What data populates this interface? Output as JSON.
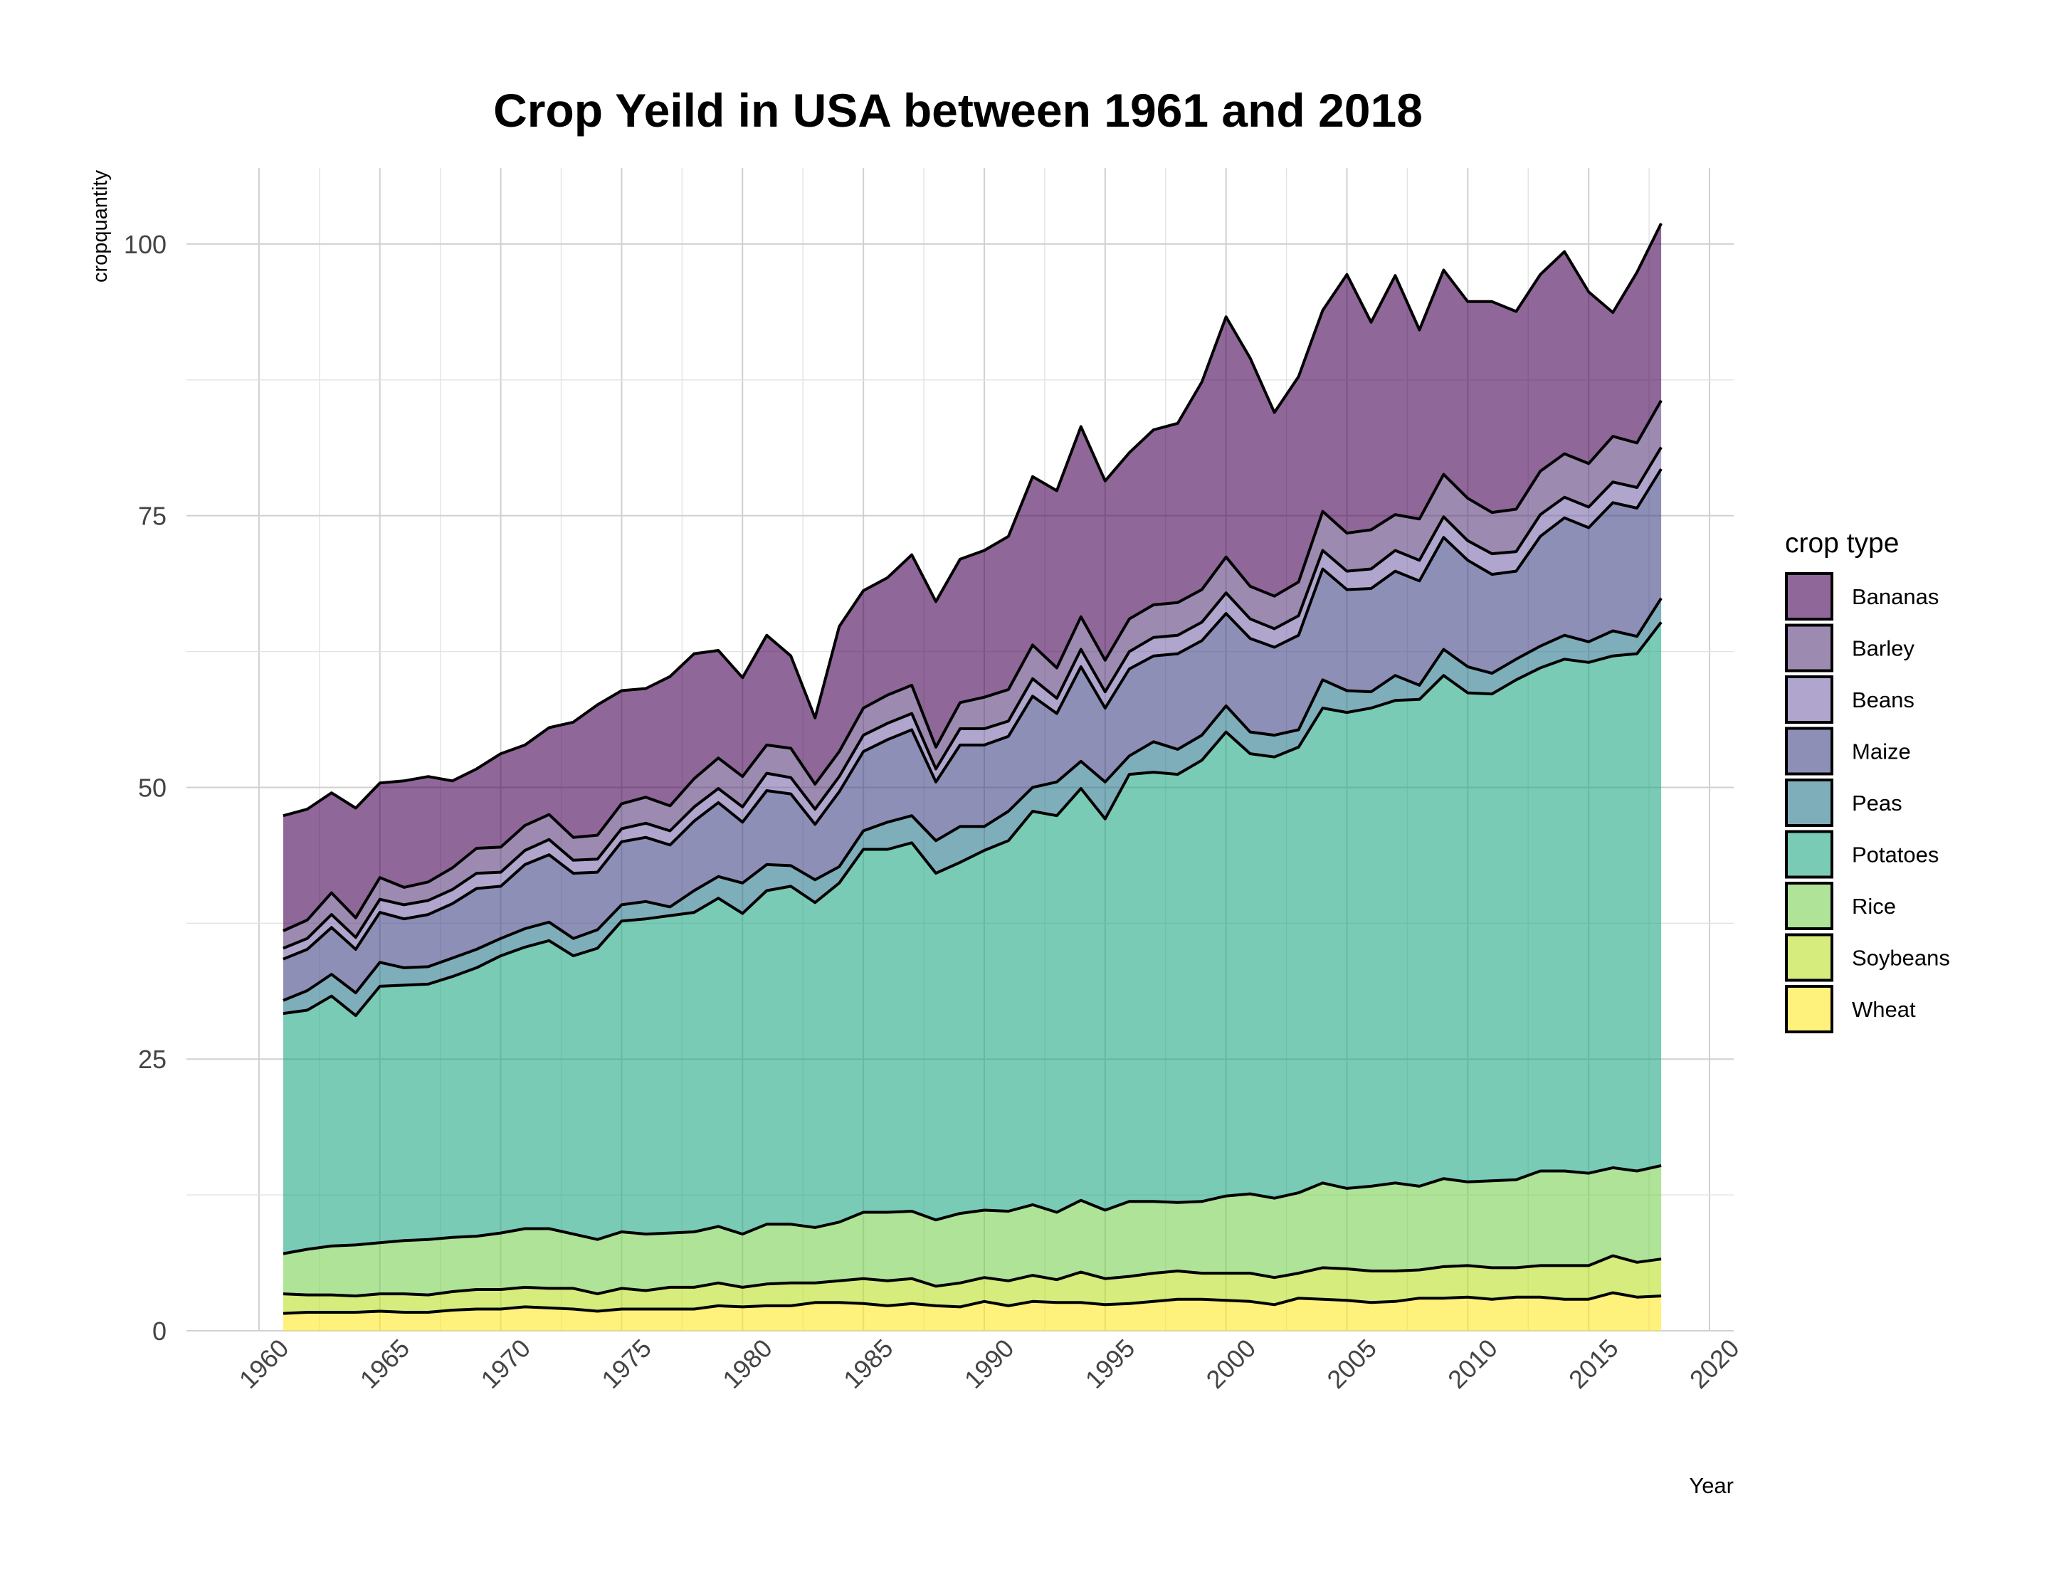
{
  "chart_data": {
    "type": "area",
    "stacked": true,
    "title": "Crop Yeild in USA between 1961 and 2018",
    "xlabel": "Year",
    "ylabel": "cropquantity",
    "xlim": [
      1957,
      2021
    ],
    "ylim": [
      0,
      107
    ],
    "x_ticks": [
      1960,
      1965,
      1970,
      1975,
      1980,
      1985,
      1990,
      1995,
      2000,
      2005,
      2010,
      2015,
      2020
    ],
    "y_ticks": [
      0,
      25,
      50,
      75,
      100
    ],
    "grid": true,
    "legend_title": "crop type",
    "legend_position": "right",
    "x": [
      1961,
      1962,
      1963,
      1964,
      1965,
      1966,
      1967,
      1968,
      1969,
      1970,
      1971,
      1972,
      1973,
      1974,
      1975,
      1976,
      1977,
      1978,
      1979,
      1980,
      1981,
      1982,
      1983,
      1984,
      1985,
      1986,
      1987,
      1988,
      1989,
      1990,
      1991,
      1992,
      1993,
      1994,
      1995,
      1996,
      1997,
      1998,
      1999,
      2000,
      2001,
      2002,
      2003,
      2004,
      2005,
      2006,
      2007,
      2008,
      2009,
      2010,
      2011,
      2012,
      2013,
      2014,
      2015,
      2016,
      2017,
      2018
    ],
    "series": [
      {
        "name": "Wheat",
        "color": "#FDE725",
        "values": [
          1.6,
          1.7,
          1.7,
          1.7,
          1.8,
          1.7,
          1.7,
          1.9,
          2.0,
          2.0,
          2.2,
          2.1,
          2.0,
          1.8,
          2.0,
          2.0,
          2.0,
          2.0,
          2.3,
          2.2,
          2.3,
          2.3,
          2.6,
          2.6,
          2.5,
          2.3,
          2.5,
          2.3,
          2.2,
          2.7,
          2.3,
          2.7,
          2.6,
          2.6,
          2.4,
          2.5,
          2.7,
          2.9,
          2.9,
          2.8,
          2.7,
          2.4,
          3.0,
          2.9,
          2.8,
          2.6,
          2.7,
          3.0,
          3.0,
          3.1,
          2.9,
          3.1,
          3.1,
          2.9,
          2.9,
          3.5,
          3.1,
          3.2
        ]
      },
      {
        "name": "Soybeans",
        "color": "#BBDF27",
        "values": [
          1.8,
          1.6,
          1.6,
          1.5,
          1.6,
          1.7,
          1.6,
          1.7,
          1.8,
          1.8,
          1.8,
          1.8,
          1.9,
          1.6,
          1.9,
          1.7,
          2.0,
          2.0,
          2.1,
          1.8,
          2.0,
          2.1,
          1.8,
          2.0,
          2.3,
          2.3,
          2.3,
          1.8,
          2.2,
          2.2,
          2.3,
          2.4,
          2.1,
          2.8,
          2.4,
          2.5,
          2.6,
          2.6,
          2.4,
          2.5,
          2.6,
          2.5,
          2.3,
          2.9,
          2.9,
          2.9,
          2.8,
          2.6,
          2.9,
          2.9,
          2.9,
          2.7,
          2.9,
          3.1,
          3.1,
          3.4,
          3.2,
          3.4
        ]
      },
      {
        "name": "Rice",
        "color": "#7AD151",
        "values": [
          3.7,
          4.2,
          4.5,
          4.7,
          4.7,
          4.9,
          5.1,
          5.0,
          4.9,
          5.2,
          5.4,
          5.5,
          5.0,
          5.0,
          5.2,
          5.2,
          5.0,
          5.1,
          5.2,
          4.9,
          5.5,
          5.4,
          5.1,
          5.4,
          6.1,
          6.3,
          6.2,
          6.1,
          6.4,
          6.2,
          6.4,
          6.5,
          6.2,
          6.6,
          6.3,
          6.9,
          6.6,
          6.3,
          6.6,
          7.1,
          7.3,
          7.3,
          7.4,
          7.8,
          7.4,
          7.8,
          8.1,
          7.7,
          8.1,
          7.7,
          8.0,
          8.1,
          8.7,
          8.7,
          8.5,
          8.1,
          8.4,
          8.6
        ]
      },
      {
        "name": "Potatoes",
        "color": "#22A884",
        "values": [
          22.1,
          22.0,
          23.0,
          21.1,
          23.6,
          23.5,
          23.5,
          24.0,
          24.7,
          25.5,
          25.9,
          26.5,
          25.6,
          26.8,
          28.6,
          29.0,
          29.2,
          29.4,
          30.2,
          29.5,
          30.7,
          31.1,
          29.9,
          31.2,
          33.4,
          33.4,
          33.9,
          31.9,
          32.3,
          33.1,
          34.1,
          36.2,
          36.5,
          37.9,
          36.0,
          39.3,
          39.5,
          39.4,
          40.6,
          42.7,
          40.5,
          40.6,
          41.0,
          43.7,
          43.8,
          44.0,
          44.4,
          44.8,
          46.3,
          45.0,
          44.8,
          46.0,
          46.3,
          47.1,
          47.0,
          47.1,
          47.6,
          50.0
        ]
      },
      {
        "name": "Peas",
        "color": "#2A788E",
        "values": [
          1.2,
          1.8,
          2.0,
          2.1,
          2.2,
          1.6,
          1.6,
          1.7,
          1.7,
          1.6,
          1.7,
          1.7,
          1.6,
          1.7,
          1.5,
          1.6,
          0.8,
          2.0,
          2.0,
          2.8,
          2.4,
          1.9,
          2.1,
          1.5,
          1.7,
          2.5,
          2.5,
          3.0,
          3.3,
          2.2,
          2.7,
          2.2,
          3.1,
          2.5,
          3.4,
          1.7,
          2.8,
          2.3,
          2.3,
          2.4,
          2.0,
          2.0,
          1.6,
          2.6,
          2.0,
          1.5,
          2.3,
          1.3,
          2.4,
          2.4,
          1.9,
          1.9,
          2.0,
          2.2,
          1.9,
          2.3,
          1.6,
          2.2
        ]
      },
      {
        "name": "Maize",
        "color": "#414487",
        "values": [
          3.8,
          3.8,
          4.3,
          4.0,
          4.6,
          4.5,
          4.8,
          5.0,
          5.6,
          4.8,
          5.9,
          6.2,
          6.0,
          5.3,
          5.8,
          5.9,
          5.7,
          6.4,
          6.8,
          5.6,
          6.8,
          6.6,
          5.1,
          6.9,
          7.3,
          7.6,
          7.9,
          5.4,
          7.5,
          7.5,
          6.9,
          8.4,
          6.3,
          8.7,
          6.8,
          8.0,
          7.9,
          8.8,
          8.7,
          8.5,
          8.6,
          8.1,
          8.7,
          10.2,
          9.3,
          9.5,
          9.6,
          9.6,
          10.3,
          9.8,
          9.1,
          8.1,
          10.1,
          10.8,
          10.5,
          11.8,
          11.8,
          11.9
        ]
      },
      {
        "name": "Beans",
        "color": "#7B6BAB",
        "values": [
          1.0,
          1.0,
          1.2,
          1.1,
          1.2,
          1.3,
          1.3,
          1.3,
          1.4,
          1.3,
          1.3,
          1.4,
          1.2,
          1.2,
          1.2,
          1.3,
          1.3,
          1.3,
          1.3,
          1.4,
          1.6,
          1.5,
          1.4,
          1.4,
          1.5,
          1.5,
          1.5,
          1.2,
          1.5,
          1.5,
          1.4,
          1.6,
          1.4,
          1.6,
          1.5,
          1.6,
          1.7,
          1.7,
          1.7,
          1.9,
          1.8,
          1.7,
          1.8,
          1.7,
          1.7,
          1.8,
          1.9,
          1.9,
          1.9,
          1.8,
          1.9,
          1.8,
          2.0,
          1.9,
          1.9,
          1.9,
          1.9,
          2.0
        ]
      },
      {
        "name": "Barley",
        "color": "#5C3C7D",
        "values": [
          1.6,
          1.7,
          2.0,
          1.8,
          2.0,
          1.6,
          1.7,
          2.0,
          2.3,
          2.3,
          2.3,
          2.3,
          2.1,
          2.2,
          2.3,
          2.4,
          2.3,
          2.6,
          2.8,
          2.8,
          2.6,
          2.7,
          2.3,
          2.3,
          2.5,
          2.6,
          2.6,
          2.0,
          2.4,
          2.9,
          2.9,
          3.1,
          2.8,
          3.0,
          2.9,
          3.0,
          3.0,
          3.0,
          3.0,
          3.3,
          3.0,
          3.0,
          3.1,
          3.6,
          3.5,
          3.6,
          3.3,
          3.8,
          3.9,
          3.9,
          3.8,
          3.9,
          4.0,
          4.0,
          4.0,
          4.2,
          4.1,
          4.3
        ]
      },
      {
        "name": "Bananas",
        "color": "#440154",
        "values": [
          10.6,
          10.2,
          9.2,
          10.1,
          8.7,
          9.8,
          9.7,
          8.0,
          7.3,
          8.6,
          7.4,
          8.0,
          10.6,
          12.0,
          10.4,
          10.0,
          11.9,
          11.5,
          9.9,
          9.1,
          10.1,
          8.5,
          6.1,
          11.5,
          10.8,
          10.8,
          12.0,
          13.4,
          13.2,
          13.5,
          14.1,
          15.5,
          16.3,
          17.5,
          16.5,
          15.3,
          16.1,
          16.5,
          19.1,
          22.1,
          21.0,
          16.9,
          18.9,
          18.5,
          23.8,
          19.1,
          22.0,
          17.4,
          18.8,
          18.1,
          19.4,
          18.2,
          18.1,
          18.6,
          15.8,
          11.4,
          15.7,
          16.3
        ]
      }
    ]
  }
}
